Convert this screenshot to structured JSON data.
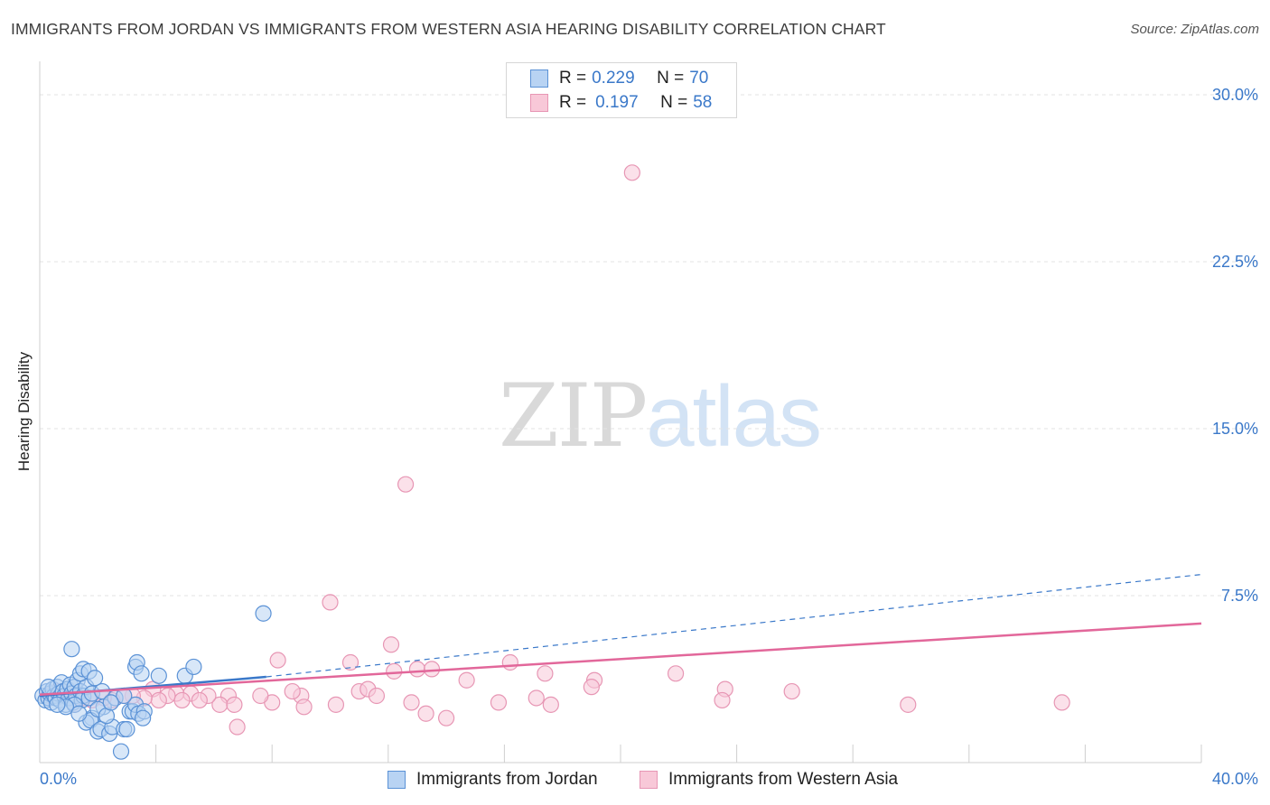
{
  "header": {
    "title": "IMMIGRANTS FROM JORDAN VS IMMIGRANTS FROM WESTERN ASIA HEARING DISABILITY CORRELATION CHART",
    "source": "Source: ZipAtlas.com"
  },
  "watermark": {
    "zip": "ZIP",
    "atlas": "atlas"
  },
  "colors": {
    "blue": "#3a78c9",
    "blue_fill": "#b8d3f3",
    "blue_stroke": "#5b92d6",
    "pink": "#e2679a",
    "pink_fill": "#f8c8d8",
    "pink_stroke": "#e796b4",
    "grid": "#e3e3e3",
    "tick_label": "#3a78c9"
  },
  "legend": {
    "rows": [
      {
        "r_label": "R =",
        "r_value": "0.229",
        "n_label": "N =",
        "n_value": "70"
      },
      {
        "r_label": "R =",
        "r_value": "0.197",
        "n_label": "N =",
        "n_value": "58"
      }
    ]
  },
  "bottom_legend": {
    "items": [
      {
        "label": "Immigrants from Jordan"
      },
      {
        "label": "Immigrants from Western Asia"
      }
    ]
  },
  "chart_data": {
    "type": "scatter",
    "title": "IMMIGRANTS FROM JORDAN VS IMMIGRANTS FROM WESTERN ASIA HEARING DISABILITY CORRELATION CHART",
    "xlabel": "",
    "ylabel": "Hearing Disability",
    "xlim": [
      0,
      40
    ],
    "ylim": [
      0,
      31.5
    ],
    "x_tick_labels": [
      "0.0%",
      "40.0%"
    ],
    "y_ticks": [
      7.5,
      15.0,
      22.5,
      30.0
    ],
    "y_tick_labels": [
      "7.5%",
      "15.0%",
      "22.5%",
      "30.0%"
    ],
    "grid": true,
    "legend_position": "top-center",
    "series": [
      {
        "name": "Immigrants from Jordan",
        "r": 0.229,
        "n": 70,
        "trend": {
          "x0": 0.0,
          "y0": 3.0,
          "x1": 7.8,
          "y1": 3.85,
          "solid_until": 7.8,
          "dashed_to_x": 40.0,
          "dashed_to_y": 8.45
        },
        "points": [
          [
            0.1,
            3.0
          ],
          [
            0.2,
            2.8
          ],
          [
            0.25,
            3.2
          ],
          [
            0.3,
            2.9
          ],
          [
            0.35,
            3.1
          ],
          [
            0.4,
            2.7
          ],
          [
            0.45,
            3.3
          ],
          [
            0.5,
            3.0
          ],
          [
            0.55,
            2.9
          ],
          [
            0.6,
            3.4
          ],
          [
            0.65,
            3.1
          ],
          [
            0.7,
            2.8
          ],
          [
            0.75,
            3.6
          ],
          [
            0.8,
            3.2
          ],
          [
            0.85,
            3.0
          ],
          [
            0.9,
            2.6
          ],
          [
            0.95,
            3.3
          ],
          [
            1.0,
            2.9
          ],
          [
            1.05,
            3.5
          ],
          [
            1.1,
            3.1
          ],
          [
            1.15,
            2.7
          ],
          [
            1.2,
            3.4
          ],
          [
            1.25,
            3.0
          ],
          [
            1.3,
            3.7
          ],
          [
            1.4,
            3.2
          ],
          [
            1.45,
            2.8
          ],
          [
            1.5,
            3.0
          ],
          [
            1.6,
            3.4
          ],
          [
            1.7,
            2.9
          ],
          [
            1.8,
            3.1
          ],
          [
            1.1,
            5.1
          ],
          [
            1.4,
            4.0
          ],
          [
            1.5,
            4.2
          ],
          [
            1.7,
            4.1
          ],
          [
            1.9,
            3.8
          ],
          [
            1.8,
            2.0
          ],
          [
            1.6,
            1.8
          ],
          [
            1.75,
            1.9
          ],
          [
            2.0,
            1.4
          ],
          [
            2.1,
            1.5
          ],
          [
            2.4,
            1.3
          ],
          [
            2.5,
            1.6
          ],
          [
            2.8,
            0.5
          ],
          [
            2.9,
            1.5
          ],
          [
            3.1,
            2.3
          ],
          [
            3.2,
            2.3
          ],
          [
            3.3,
            2.6
          ],
          [
            3.4,
            2.2
          ],
          [
            3.0,
            1.5
          ],
          [
            3.3,
            4.3
          ],
          [
            3.35,
            4.5
          ],
          [
            3.5,
            4.0
          ],
          [
            3.6,
            2.3
          ],
          [
            3.55,
            2.0
          ],
          [
            4.1,
            3.9
          ],
          [
            5.0,
            3.9
          ],
          [
            5.3,
            4.3
          ],
          [
            7.7,
            6.7
          ],
          [
            2.2,
            2.5
          ],
          [
            2.0,
            2.4
          ],
          [
            2.3,
            2.1
          ],
          [
            2.15,
            3.2
          ],
          [
            2.6,
            2.9
          ],
          [
            2.9,
            3.0
          ],
          [
            1.2,
            2.6
          ],
          [
            0.9,
            2.5
          ],
          [
            0.6,
            2.6
          ],
          [
            0.3,
            3.4
          ],
          [
            1.35,
            2.2
          ],
          [
            2.45,
            2.7
          ]
        ]
      },
      {
        "name": "Immigrants from Western Asia",
        "r": 0.197,
        "n": 58,
        "trend": {
          "x0": 0.0,
          "y0": 3.05,
          "x1": 40.0,
          "y1": 6.25
        },
        "points": [
          [
            20.4,
            26.5
          ],
          [
            12.6,
            12.5
          ],
          [
            10.0,
            7.2
          ],
          [
            12.1,
            5.3
          ],
          [
            8.2,
            4.6
          ],
          [
            10.7,
            4.5
          ],
          [
            12.2,
            4.1
          ],
          [
            13.0,
            4.2
          ],
          [
            13.5,
            4.2
          ],
          [
            16.2,
            4.5
          ],
          [
            17.4,
            4.0
          ],
          [
            21.9,
            4.0
          ],
          [
            23.6,
            3.3
          ],
          [
            25.9,
            3.2
          ],
          [
            14.7,
            3.7
          ],
          [
            11.0,
            3.2
          ],
          [
            11.3,
            3.3
          ],
          [
            11.6,
            3.0
          ],
          [
            9.0,
            3.0
          ],
          [
            8.7,
            3.2
          ],
          [
            8.0,
            2.7
          ],
          [
            7.6,
            3.0
          ],
          [
            6.5,
            3.0
          ],
          [
            6.2,
            2.6
          ],
          [
            5.2,
            3.1
          ],
          [
            5.8,
            3.0
          ],
          [
            4.7,
            3.1
          ],
          [
            4.9,
            2.8
          ],
          [
            4.4,
            3.0
          ],
          [
            3.9,
            3.3
          ],
          [
            4.1,
            2.8
          ],
          [
            3.6,
            2.9
          ],
          [
            3.2,
            3.0
          ],
          [
            2.9,
            3.0
          ],
          [
            2.5,
            2.8
          ],
          [
            2.2,
            2.9
          ],
          [
            1.8,
            2.8
          ],
          [
            1.5,
            2.9
          ],
          [
            1.2,
            2.6
          ],
          [
            0.9,
            3.0
          ],
          [
            0.6,
            3.2
          ],
          [
            0.3,
            3.0
          ],
          [
            6.7,
            2.6
          ],
          [
            9.1,
            2.5
          ],
          [
            10.2,
            2.6
          ],
          [
            12.8,
            2.7
          ],
          [
            13.3,
            2.2
          ],
          [
            14.0,
            2.0
          ],
          [
            15.8,
            2.7
          ],
          [
            17.1,
            2.9
          ],
          [
            17.6,
            2.6
          ],
          [
            23.5,
            2.8
          ],
          [
            29.9,
            2.6
          ],
          [
            35.2,
            2.7
          ],
          [
            6.8,
            1.6
          ],
          [
            19.1,
            3.7
          ],
          [
            19.0,
            3.4
          ],
          [
            5.5,
            2.8
          ]
        ]
      }
    ]
  }
}
